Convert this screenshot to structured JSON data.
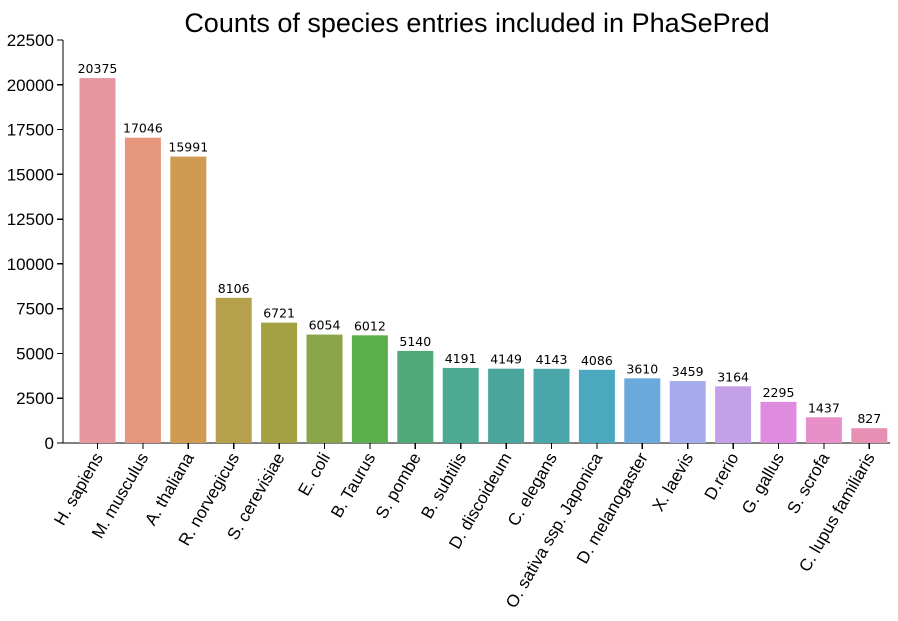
{
  "chart_data": {
    "type": "bar",
    "title": "Counts of species entries included in PhaSePred",
    "xlabel": "",
    "ylabel": "",
    "ylim": [
      0,
      22500
    ],
    "yticks": [
      0,
      2500,
      5000,
      7500,
      10000,
      12500,
      15000,
      17500,
      20000,
      22500
    ],
    "grid": false,
    "legend": "none",
    "categories": [
      "H. sapiens",
      "M. musculus",
      "A. thaliana",
      "R. norvegicus",
      "S. cerevisiae",
      "E. coli",
      "B. Taurus",
      "S. pombe",
      "B. subtilis",
      "D. discoideum",
      "C. elegans",
      "O. sativa ssp. Japonica",
      "D. melanogaster",
      "X. laevis",
      "D.rerio",
      "G. gallus",
      "S. scrofa",
      "C. lupus familiaris"
    ],
    "values": [
      20375,
      17046,
      15991,
      8106,
      6721,
      6054,
      6012,
      5140,
      4191,
      4149,
      4143,
      4086,
      3610,
      3459,
      3164,
      2295,
      1437,
      827
    ],
    "data_labels": [
      "20375",
      "17046",
      "15991",
      "8106",
      "6721",
      "6054",
      "6012",
      "5140",
      "4191",
      "4149",
      "4143",
      "4086",
      "3610",
      "3459",
      "3164",
      "2295",
      "1437",
      "827"
    ],
    "colors": [
      "#e8969f",
      "#e6967c",
      "#cf9a52",
      "#b5a04c",
      "#a4a044",
      "#8ba64a",
      "#5dae4c",
      "#4ea877",
      "#4ca992",
      "#4aa59c",
      "#4ba6a9",
      "#4aa8bf",
      "#6aa9dc",
      "#a6aceb",
      "#c4a0e8",
      "#df8be0",
      "#e68fc9",
      "#e88fb4"
    ]
  }
}
